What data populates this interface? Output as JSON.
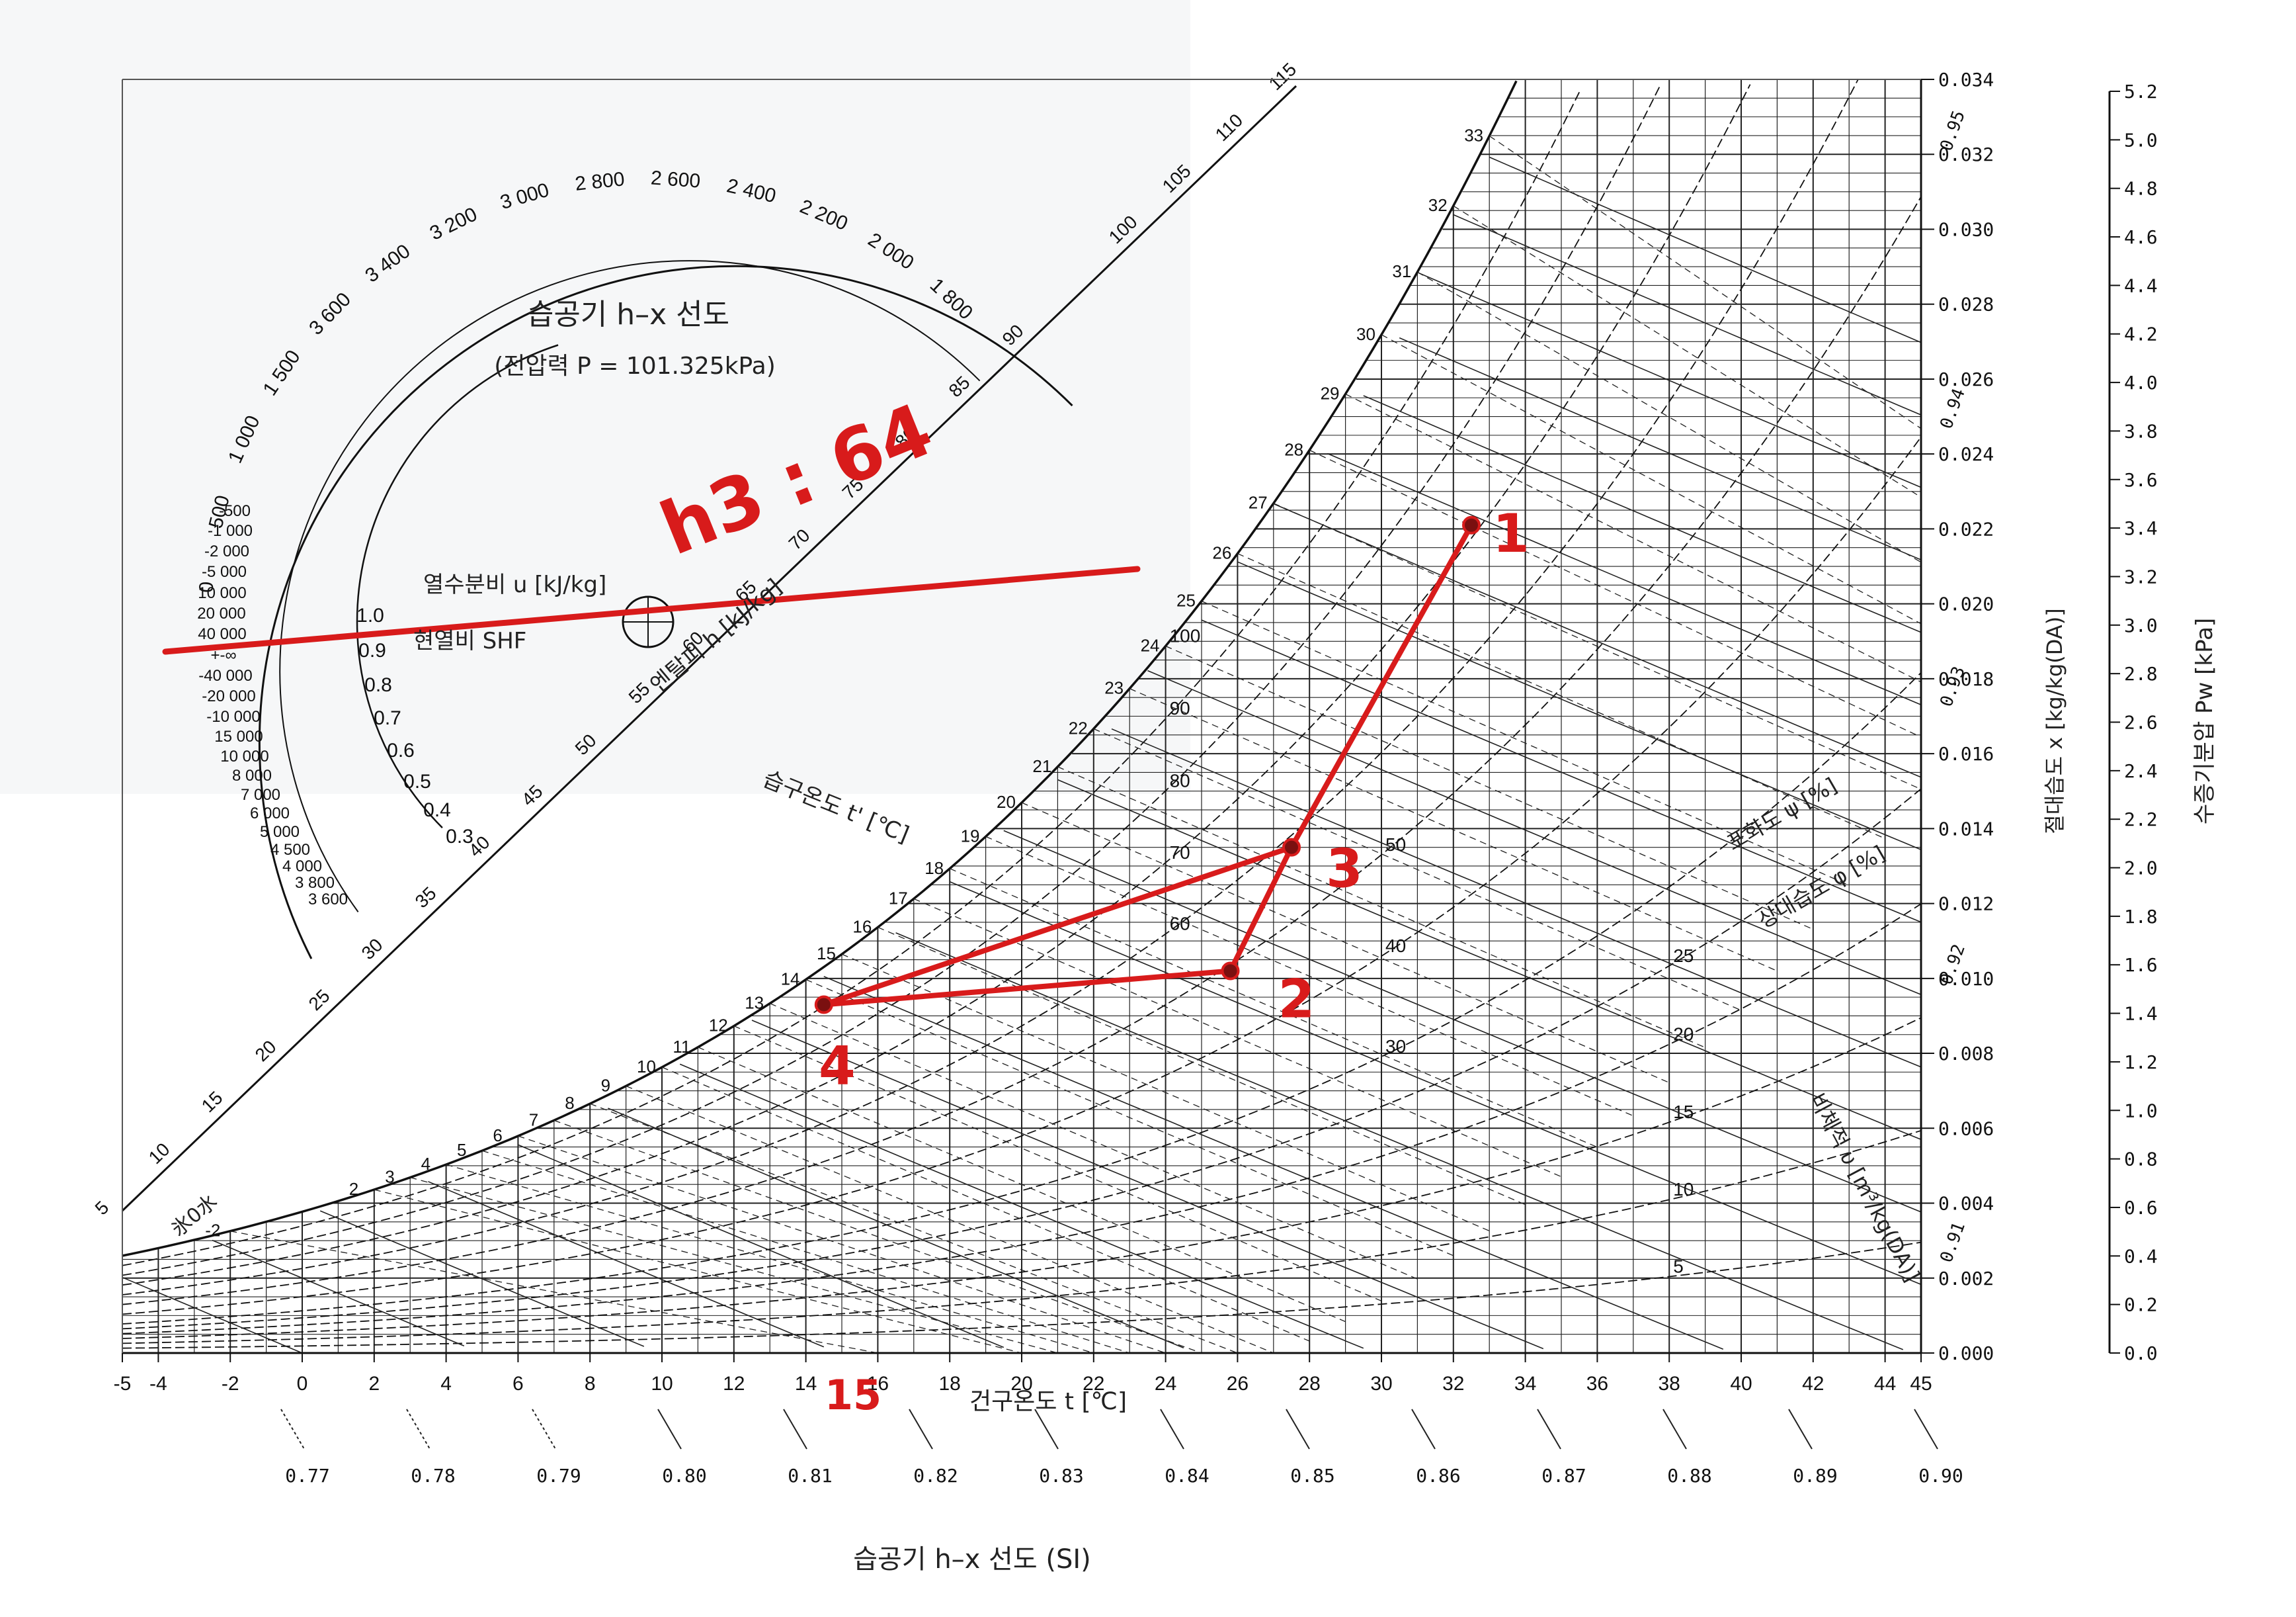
{
  "page": {
    "title": "습공기 h–x 선도",
    "subtitle": "(전압력 P = 101.325kPa)",
    "footer_title": "습공기 h–x 선도 (SI)"
  },
  "chart_data": {
    "type": "psychrometric",
    "title": "습공기 h–x 선도",
    "subtitle": "(전압력 P = 101.325kPa)",
    "xlabel": "건구온도 t [℃]",
    "ylabel_left_right": "절대습도 x [kg/kg(DA)]",
    "ylabel_far_right": "수증기분압 Pw [kPa]",
    "xlim": [
      -5,
      45
    ],
    "ylim": [
      0.0,
      0.034
    ],
    "x_ticks": [
      "-5",
      "-4",
      "-2",
      "0",
      "2",
      "4",
      "6",
      "8",
      "10",
      "12",
      "14",
      "16",
      "18",
      "20",
      "22",
      "24",
      "26",
      "28",
      "30",
      "32",
      "34",
      "36",
      "38",
      "40",
      "42",
      "44",
      "45"
    ],
    "x_tick_values": [
      -5,
      -4,
      -2,
      0,
      2,
      4,
      6,
      8,
      10,
      12,
      14,
      16,
      18,
      20,
      22,
      24,
      26,
      28,
      30,
      32,
      34,
      36,
      38,
      40,
      42,
      44,
      45
    ],
    "y_ticks": [
      "0.000",
      "0.002",
      "0.004",
      "0.006",
      "0.008",
      "0.010",
      "0.012",
      "0.014",
      "0.016",
      "0.018",
      "0.020",
      "0.022",
      "0.024",
      "0.026",
      "0.028",
      "0.030",
      "0.032",
      "0.034"
    ],
    "y_tick_values": [
      0.0,
      0.002,
      0.004,
      0.006,
      0.008,
      0.01,
      0.012,
      0.014,
      0.016,
      0.018,
      0.02,
      0.022,
      0.024,
      0.026,
      0.028,
      0.03,
      0.032,
      0.034
    ],
    "pw_ticks": [
      "0.0",
      "0.2",
      "0.4",
      "0.6",
      "0.8",
      "1.0",
      "1.2",
      "1.4",
      "1.6",
      "1.8",
      "2.0",
      "2.2",
      "2.4",
      "2.6",
      "2.8",
      "3.0",
      "3.2",
      "3.4",
      "3.6",
      "3.8",
      "4.0",
      "4.2",
      "4.4",
      "4.6",
      "4.8",
      "5.0",
      "5.2"
    ],
    "pw_tick_values": [
      0.0,
      0.2,
      0.4,
      0.6,
      0.8,
      1.0,
      1.2,
      1.4,
      1.6,
      1.8,
      2.0,
      2.2,
      2.4,
      2.6,
      2.8,
      3.0,
      3.2,
      3.4,
      3.6,
      3.8,
      4.0,
      4.2,
      4.4,
      4.6,
      4.8,
      5.0,
      5.2
    ],
    "specific_volume_ticks": [
      "0.77",
      "0.78",
      "0.79",
      "0.80",
      "0.81",
      "0.82",
      "0.83",
      "0.84",
      "0.85",
      "0.86",
      "0.87",
      "0.88",
      "0.89",
      "0.90"
    ],
    "enthalpy_scale_ticks": [
      "5",
      "10",
      "15",
      "20",
      "25",
      "30",
      "35",
      "40",
      "45",
      "50",
      "55",
      "60",
      "65",
      "70",
      "75",
      "80",
      "85",
      "90",
      "100",
      "105",
      "110",
      "115"
    ],
    "enthalpy_scale_values": [
      5,
      10,
      15,
      20,
      25,
      30,
      35,
      40,
      45,
      50,
      55,
      60,
      65,
      70,
      75,
      80,
      85,
      90,
      100,
      105,
      110,
      115
    ],
    "wet_bulb_ticks": [
      "-2",
      "2",
      "3",
      "4",
      "5",
      "6",
      "7",
      "8",
      "9",
      "10",
      "11",
      "12",
      "13",
      "14",
      "15",
      "16",
      "17",
      "18",
      "19",
      "20",
      "21",
      "22",
      "23",
      "24",
      "25",
      "26",
      "27",
      "28",
      "29",
      "30",
      "31",
      "32",
      "33"
    ],
    "wet_bulb_values": [
      -2,
      2,
      3,
      4,
      5,
      6,
      7,
      8,
      9,
      10,
      11,
      12,
      13,
      14,
      15,
      16,
      17,
      18,
      19,
      20,
      21,
      22,
      23,
      24,
      25,
      26,
      27,
      28,
      29,
      30,
      31,
      32,
      33
    ],
    "ice_label": "氷0水",
    "rh_curves": [
      5,
      10,
      15,
      20,
      25,
      30,
      40,
      50,
      60,
      70,
      80,
      90,
      100
    ],
    "rh_labels": [
      "5",
      "10",
      "15",
      "20",
      "25",
      "30",
      "40",
      "50",
      "60",
      "70",
      "80",
      "90",
      "100"
    ],
    "saturation_labels_right": [
      "0.95",
      "0.94",
      "0.93",
      "0.92",
      "0.91"
    ],
    "axis_labels": {
      "enthalpy": "엔탈피 h [kJ/kg]",
      "wet_bulb": "습구온도 t' [℃]",
      "saturation": "포화도 ψ [%]",
      "relative_humidity": "상대습도 φ [%]",
      "specific_volume": "비체적 υ [m³/kg(DA)]"
    },
    "protractor": {
      "outer_ticks": [
        "1 800",
        "2 000",
        "2 200",
        "2 400",
        "2 600",
        "2 800",
        "3 000",
        "3 200",
        "3 400",
        "3 600",
        "1 500",
        "1 000",
        "500",
        "0"
      ],
      "left_ticks": [
        "-500",
        "-1 000",
        "-2 000",
        "-5 000",
        "10 000",
        "20 000",
        "40 000",
        "+-∞",
        "-40 000",
        "-20 000",
        "-10 000",
        "15 000",
        "10 000",
        "8 000",
        "7 000",
        "6 000",
        "5 000",
        "4 500",
        "4 000",
        "3 800",
        "3 600"
      ],
      "shf_ticks": [
        "1.0",
        "0.9",
        "0.8",
        "0.7",
        "0.6",
        "0.5",
        "0.4",
        "0.3"
      ],
      "label_u": "열수분비 u [kJ/kg]",
      "label_shf": "현열비 SHF"
    },
    "process": {
      "points": [
        {
          "label": "1",
          "t": 32.5,
          "x": 0.0221
        },
        {
          "label": "2",
          "t": 25.8,
          "x": 0.0102
        },
        {
          "label": "3",
          "t": 27.5,
          "x": 0.0135
        },
        {
          "label": "4",
          "t": 14.5,
          "x": 0.0093
        }
      ],
      "segments": [
        [
          "1",
          "3"
        ],
        [
          "3",
          "2"
        ],
        [
          "2",
          "4"
        ],
        [
          "4",
          "3"
        ]
      ],
      "annotation_h": "h3 : 64",
      "annotation_t": "15",
      "color": "#d81b1b"
    }
  }
}
